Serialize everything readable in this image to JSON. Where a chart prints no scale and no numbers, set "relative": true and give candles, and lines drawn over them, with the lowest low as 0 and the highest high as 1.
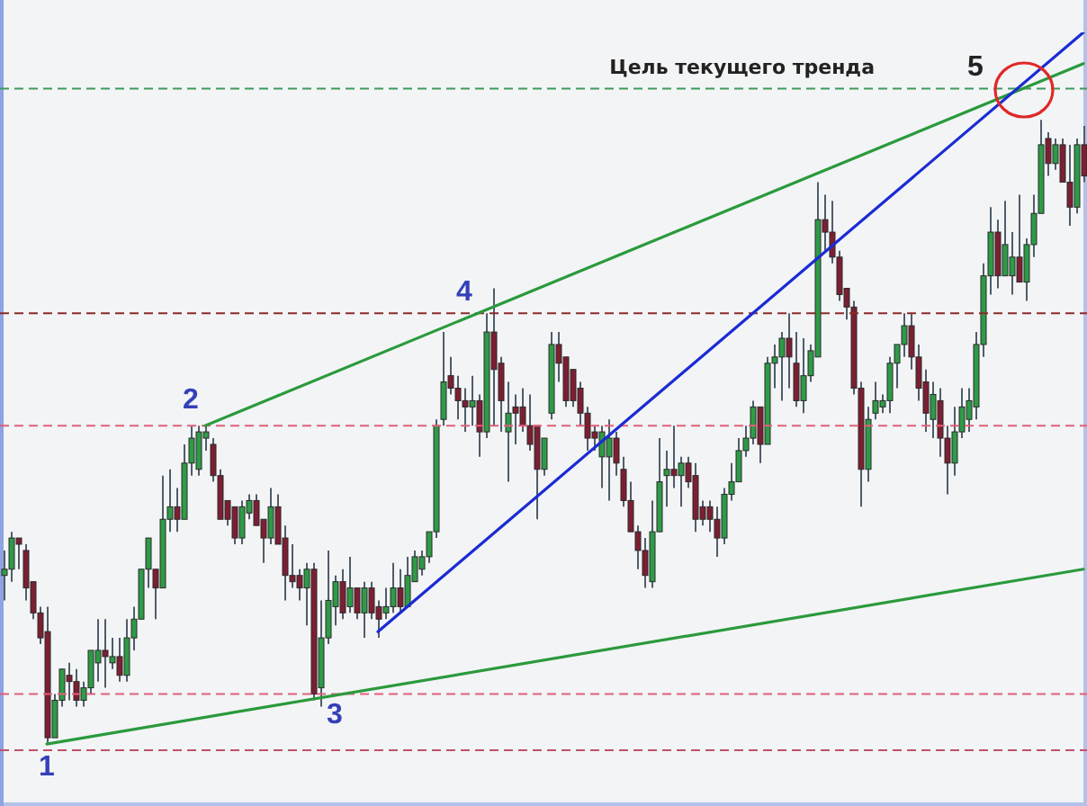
{
  "chart_data": {
    "type": "candlestick",
    "relative": true,
    "tick_labels": false,
    "categories": [
      null,
      null,
      null,
      null,
      null,
      null,
      null,
      null,
      null,
      null,
      null,
      null,
      null,
      null,
      null,
      null,
      null,
      null,
      null,
      null,
      null,
      null,
      null,
      null,
      null,
      null,
      null,
      null,
      null,
      null,
      null,
      null,
      null,
      null,
      null,
      null,
      null,
      null,
      null,
      null,
      null,
      null,
      null,
      null,
      null,
      null,
      null,
      null,
      null,
      null,
      null,
      null,
      null,
      null,
      null,
      null,
      null,
      null,
      null,
      null,
      null,
      null,
      null,
      null,
      null,
      null,
      null,
      null,
      null,
      null,
      null,
      null,
      null,
      null,
      null,
      null,
      null,
      null,
      null,
      null,
      null,
      null,
      null,
      null,
      null,
      null,
      null,
      null,
      null,
      null,
      null,
      null,
      null,
      null,
      null,
      null,
      null,
      null,
      null,
      null,
      null,
      null,
      null,
      null,
      null,
      null,
      null,
      null,
      null,
      null,
      null,
      null,
      null,
      null,
      null,
      null,
      null,
      null,
      null,
      null,
      null,
      null,
      null,
      null,
      null,
      null,
      null,
      null,
      null,
      null,
      null,
      null,
      null,
      null,
      null,
      null,
      null,
      null,
      null,
      null,
      null,
      null,
      null,
      null,
      null,
      null,
      null,
      null,
      null,
      null,
      null
    ],
    "ohlc": [
      [
        0.27,
        0.31,
        0.23,
        0.28
      ],
      [
        0.28,
        0.34,
        0.26,
        0.33
      ],
      [
        0.33,
        0.33,
        0.28,
        0.32
      ],
      [
        0.31,
        0.32,
        0.23,
        0.25
      ],
      [
        0.26,
        0.26,
        0.2,
        0.21
      ],
      [
        0.21,
        0.22,
        0.16,
        0.17
      ],
      [
        0.18,
        0.22,
        0,
        0.01
      ],
      [
        0.01,
        0.08,
        0.01,
        0.07
      ],
      [
        0.07,
        0.12,
        0.06,
        0.12
      ],
      [
        0.11,
        0.13,
        0.07,
        0.1
      ],
      [
        0.1,
        0.12,
        0.06,
        0.07
      ],
      [
        0.07,
        0.1,
        0.06,
        0.09
      ],
      [
        0.09,
        0.15,
        0.08,
        0.15
      ],
      [
        0.13,
        0.2,
        0.1,
        0.15
      ],
      [
        0.15,
        0.2,
        0.09,
        0.14
      ],
      [
        0.13,
        0.17,
        0.12,
        0.14
      ],
      [
        0.14,
        0.17,
        0.1,
        0.11
      ],
      [
        0.11,
        0.2,
        0.1,
        0.17
      ],
      [
        0.17,
        0.22,
        0.15,
        0.2
      ],
      [
        0.2,
        0.28,
        0.2,
        0.28
      ],
      [
        0.28,
        0.33,
        0.25,
        0.33
      ],
      [
        0.28,
        0.28,
        0.2,
        0.25
      ],
      [
        0.25,
        0.43,
        0.25,
        0.36
      ],
      [
        0.36,
        0.44,
        0.34,
        0.38
      ],
      [
        0.38,
        0.41,
        0.34,
        0.36
      ],
      [
        0.36,
        0.48,
        0.36,
        0.45
      ],
      [
        0.45,
        0.51,
        0.43,
        0.49
      ],
      [
        0.44,
        0.51,
        0.43,
        0.5
      ],
      [
        0.49,
        0.51,
        0.47,
        0.5
      ],
      [
        0.48,
        0.49,
        0.42,
        0.43
      ],
      [
        0.43,
        0.44,
        0.36,
        0.36
      ],
      [
        0.39,
        0.39,
        0.35,
        0.36
      ],
      [
        0.38,
        0.38,
        0.32,
        0.33
      ],
      [
        0.33,
        0.39,
        0.32,
        0.38
      ],
      [
        0.37,
        0.4,
        0.36,
        0.39
      ],
      [
        0.39,
        0.4,
        0.35,
        0.35
      ],
      [
        0.36,
        0.36,
        0.29,
        0.33
      ],
      [
        0.33,
        0.41,
        0.32,
        0.38
      ],
      [
        0.38,
        0.4,
        0.32,
        0.32
      ],
      [
        0.33,
        0.35,
        0.23,
        0.27
      ],
      [
        0.27,
        0.32,
        0.25,
        0.26
      ],
      [
        0.27,
        0.28,
        0.23,
        0.25
      ],
      [
        0.25,
        0.29,
        0.19,
        0.28
      ],
      [
        0.28,
        0.29,
        0.07,
        0.08
      ],
      [
        0.09,
        0.23,
        0.06,
        0.17
      ],
      [
        0.17,
        0.31,
        0.16,
        0.23
      ],
      [
        0.22,
        0.27,
        0.19,
        0.26
      ],
      [
        0.26,
        0.28,
        0.2,
        0.21
      ],
      [
        0.22,
        0.3,
        0.21,
        0.25
      ],
      [
        0.25,
        0.25,
        0.2,
        0.21
      ],
      [
        0.21,
        0.26,
        0.17,
        0.25
      ],
      [
        0.25,
        0.26,
        0.2,
        0.21
      ],
      [
        0.22,
        0.23,
        0.17,
        0.2
      ],
      [
        0.21,
        0.25,
        0.2,
        0.22
      ],
      [
        0.22,
        0.29,
        0.21,
        0.25
      ],
      [
        0.25,
        0.28,
        0.21,
        0.22
      ],
      [
        0.22,
        0.3,
        0.22,
        0.27
      ],
      [
        0.26,
        0.31,
        0.26,
        0.3
      ],
      [
        0.28,
        0.31,
        0.27,
        0.3
      ],
      [
        0.3,
        0.34,
        0.29,
        0.34
      ],
      [
        0.34,
        0.52,
        0.33,
        0.51
      ],
      [
        0.52,
        0.66,
        0.51,
        0.58
      ],
      [
        0.59,
        0.62,
        0.56,
        0.57
      ],
      [
        0.57,
        0.59,
        0.52,
        0.55
      ],
      [
        0.55,
        0.57,
        0.5,
        0.54
      ],
      [
        0.54,
        0.59,
        0.51,
        0.55
      ],
      [
        0.55,
        0.56,
        0.46,
        0.5
      ],
      [
        0.5,
        0.69,
        0.49,
        0.66
      ],
      [
        0.66,
        0.73,
        0.51,
        0.6
      ],
      [
        0.61,
        0.62,
        0.5,
        0.55
      ],
      [
        0.5,
        0.58,
        0.42,
        0.53
      ],
      [
        0.54,
        0.56,
        0.48,
        0.53
      ],
      [
        0.54,
        0.57,
        0.5,
        0.51
      ],
      [
        0.51,
        0.56,
        0.47,
        0.48
      ],
      [
        0.51,
        0.51,
        0.36,
        0.44
      ],
      [
        0.44,
        0.49,
        0.43,
        0.49
      ],
      [
        0.53,
        0.66,
        0.52,
        0.64
      ],
      [
        0.64,
        0.66,
        0.58,
        0.61
      ],
      [
        0.62,
        0.62,
        0.54,
        0.55
      ],
      [
        0.6,
        0.6,
        0.54,
        0.55
      ],
      [
        0.57,
        0.58,
        0.51,
        0.53
      ],
      [
        0.53,
        0.54,
        0.47,
        0.49
      ],
      [
        0.5,
        0.51,
        0.47,
        0.49
      ],
      [
        0.46,
        0.51,
        0.41,
        0.5
      ],
      [
        0.46,
        0.52,
        0.39,
        0.49
      ],
      [
        0.49,
        0.5,
        0.43,
        0.45
      ],
      [
        0.44,
        0.46,
        0.38,
        0.39
      ],
      [
        0.39,
        0.42,
        0.34,
        0.34
      ],
      [
        0.34,
        0.35,
        0.28,
        0.31
      ],
      [
        0.31,
        0.33,
        0.25,
        0.27
      ],
      [
        0.26,
        0.39,
        0.25,
        0.34
      ],
      [
        0.34,
        0.49,
        0.34,
        0.42
      ],
      [
        0.43,
        0.47,
        0.38,
        0.44
      ],
      [
        0.44,
        0.51,
        0.41,
        0.43
      ],
      [
        0.43,
        0.46,
        0.38,
        0.45
      ],
      [
        0.45,
        0.46,
        0.41,
        0.42
      ],
      [
        0.43,
        0.45,
        0.34,
        0.36
      ],
      [
        0.38,
        0.39,
        0.35,
        0.36
      ],
      [
        0.38,
        0.39,
        0.34,
        0.36
      ],
      [
        0.36,
        0.38,
        0.3,
        0.33
      ],
      [
        0.33,
        0.41,
        0.32,
        0.4
      ],
      [
        0.4,
        0.45,
        0.39,
        0.42
      ],
      [
        0.42,
        0.49,
        0.42,
        0.47
      ],
      [
        0.47,
        0.51,
        0.46,
        0.49
      ],
      [
        0.49,
        0.55,
        0.48,
        0.54
      ],
      [
        0.54,
        0.54,
        0.45,
        0.48
      ],
      [
        0.48,
        0.62,
        0.48,
        0.61
      ],
      [
        0.61,
        0.64,
        0.57,
        0.62
      ],
      [
        0.62,
        0.66,
        0.55,
        0.65
      ],
      [
        0.65,
        0.69,
        0.57,
        0.62
      ],
      [
        0.61,
        0.66,
        0.54,
        0.55
      ],
      [
        0.55,
        0.65,
        0.53,
        0.59
      ],
      [
        0.59,
        0.64,
        0.58,
        0.63
      ],
      [
        0.62,
        0.9,
        0.62,
        0.84
      ],
      [
        0.84,
        0.88,
        0.79,
        0.82
      ],
      [
        0.82,
        0.87,
        0.77,
        0.78
      ],
      [
        0.78,
        0.79,
        0.71,
        0.72
      ],
      [
        0.73,
        0.73,
        0.68,
        0.7
      ],
      [
        0.7,
        0.71,
        0.56,
        0.57
      ],
      [
        0.57,
        0.58,
        0.38,
        0.44
      ],
      [
        0.44,
        0.54,
        0.42,
        0.52
      ],
      [
        0.53,
        0.58,
        0.52,
        0.55
      ],
      [
        0.54,
        0.56,
        0.53,
        0.55
      ],
      [
        0.55,
        0.62,
        0.53,
        0.61
      ],
      [
        0.61,
        0.64,
        0.57,
        0.64
      ],
      [
        0.64,
        0.69,
        0.62,
        0.67
      ],
      [
        0.67,
        0.69,
        0.6,
        0.62
      ],
      [
        0.62,
        0.64,
        0.55,
        0.57
      ],
      [
        0.58,
        0.6,
        0.5,
        0.53
      ],
      [
        0.52,
        0.58,
        0.49,
        0.56
      ],
      [
        0.55,
        0.57,
        0.46,
        0.49
      ],
      [
        0.49,
        0.51,
        0.4,
        0.45
      ],
      [
        0.45,
        0.54,
        0.43,
        0.5
      ],
      [
        0.5,
        0.57,
        0.49,
        0.54
      ],
      [
        0.52,
        0.57,
        0.5,
        0.55
      ],
      [
        0.54,
        0.66,
        0.52,
        0.64
      ],
      [
        0.64,
        0.77,
        0.62,
        0.75
      ],
      [
        0.75,
        0.86,
        0.72,
        0.82
      ],
      [
        0.82,
        0.84,
        0.73,
        0.75
      ],
      [
        0.75,
        0.87,
        0.75,
        0.8
      ],
      [
        0.75,
        0.82,
        0.72,
        0.78
      ],
      [
        0.78,
        0.88,
        0.74,
        0.74
      ],
      [
        0.74,
        0.81,
        0.71,
        0.8
      ],
      [
        0.8,
        0.88,
        0.78,
        0.85
      ],
      [
        0.85,
        1,
        0.85,
        0.96
      ],
      [
        0.97,
        0.98,
        0.91,
        0.93
      ],
      [
        0.93,
        0.97,
        0.92,
        0.96
      ],
      [
        0.96,
        0.97,
        0.9,
        0.9
      ],
      [
        0.9,
        0.96,
        0.83,
        0.86
      ],
      [
        0.86,
        0.97,
        0.85,
        0.96
      ],
      [
        0.96,
        0.99,
        0.9,
        0.91
      ]
    ],
    "colors": [
      "#2e9b47",
      "#2e9b47",
      "#7d1e32",
      "#7d1e32",
      "#7d1e32",
      "#7d1e32",
      "#7d1e32",
      "#2e9b47",
      "#2e9b47",
      "#7d1e32",
      "#7d1e32",
      "#2e9b47",
      "#2e9b47",
      "#2e9b47",
      "#7d1e32",
      "#2e9b47",
      "#7d1e32",
      "#2e9b47",
      "#2e9b47",
      "#2e9b47",
      "#2e9b47",
      "#7d1e32",
      "#2e9b47",
      "#2e9b47",
      "#7d1e32",
      "#2e9b47",
      "#2e9b47",
      "#2e9b47",
      "#2e9b47",
      "#7d1e32",
      "#7d1e32",
      "#7d1e32",
      "#7d1e32",
      "#2e9b47",
      "#2e9b47",
      "#7d1e32",
      "#7d1e32",
      "#2e9b47",
      "#7d1e32",
      "#7d1e32",
      "#7d1e32",
      "#7d1e32",
      "#2e9b47",
      "#7d1e32",
      "#2e9b47",
      "#2e9b47",
      "#2e9b47",
      "#7d1e32",
      "#2e9b47",
      "#7d1e32",
      "#2e9b47",
      "#7d1e32",
      "#7d1e32",
      "#2e9b47",
      "#2e9b47",
      "#7d1e32",
      "#2e9b47",
      "#2e9b47",
      "#2e9b47",
      "#2e9b47",
      "#2e9b47",
      "#2e9b47",
      "#7d1e32",
      "#7d1e32",
      "#7d1e32",
      "#2e9b47",
      "#7d1e32",
      "#2e9b47",
      "#7d1e32",
      "#7d1e32",
      "#2e9b47",
      "#7d1e32",
      "#7d1e32",
      "#7d1e32",
      "#7d1e32",
      "#2e9b47",
      "#2e9b47",
      "#7d1e32",
      "#7d1e32",
      "#7d1e32",
      "#7d1e32",
      "#7d1e32",
      "#7d1e32",
      "#2e9b47",
      "#2e9b47",
      "#7d1e32",
      "#7d1e32",
      "#7d1e32",
      "#7d1e32",
      "#7d1e32",
      "#2e9b47",
      "#2e9b47",
      "#2e9b47",
      "#7d1e32",
      "#2e9b47",
      "#7d1e32",
      "#7d1e32",
      "#7d1e32",
      "#7d1e32",
      "#7d1e32",
      "#2e9b47",
      "#2e9b47",
      "#2e9b47",
      "#2e9b47",
      "#2e9b47",
      "#7d1e32",
      "#2e9b47",
      "#2e9b47",
      "#2e9b47",
      "#7d1e32",
      "#7d1e32",
      "#2e9b47",
      "#2e9b47",
      "#2e9b47",
      "#7d1e32",
      "#7d1e32",
      "#7d1e32",
      "#7d1e32",
      "#7d1e32",
      "#7d1e32",
      "#2e9b47",
      "#2e9b47",
      "#2e9b47",
      "#2e9b47",
      "#2e9b47",
      "#2e9b47",
      "#7d1e32",
      "#7d1e32",
      "#7d1e32",
      "#2e9b47",
      "#7d1e32",
      "#7d1e32",
      "#2e9b47",
      "#2e9b47",
      "#2e9b47",
      "#2e9b47",
      "#2e9b47",
      "#2e9b47",
      "#7d1e32",
      "#2e9b47",
      "#2e9b47",
      "#7d1e32",
      "#2e9b47",
      "#2e9b47",
      "#2e9b47",
      "#7d1e32",
      "#2e9b47",
      "#7d1e32",
      "#7d1e32",
      "#2e9b47",
      "#7d1e32"
    ],
    "series": [
      {
        "type": "line",
        "color": "#2a9a3c",
        "values": [
          null,
          null,
          null,
          null,
          null,
          null,
          0,
          null,
          null,
          null,
          null,
          null,
          null,
          null,
          null,
          null,
          null,
          null,
          null,
          null,
          null,
          null,
          null,
          null,
          null,
          null,
          null,
          null,
          null,
          null,
          null,
          null,
          null,
          null,
          null,
          null,
          null,
          null,
          null,
          null,
          null,
          null,
          null,
          null,
          null,
          null,
          null,
          null,
          null,
          null,
          null,
          null,
          null,
          null,
          null,
          null,
          null,
          null,
          null,
          null,
          null,
          null,
          null,
          null,
          null,
          null,
          null,
          null,
          null,
          null,
          null,
          null,
          null,
          null,
          null,
          null,
          null,
          null,
          null,
          null,
          null,
          null,
          null,
          null,
          null,
          null,
          null,
          null,
          null,
          null,
          null,
          null,
          null,
          null,
          null,
          null,
          null,
          null,
          null,
          null,
          null,
          null,
          null,
          null,
          null,
          null,
          null,
          null,
          null,
          null,
          null,
          null,
          null,
          null,
          null,
          null,
          null,
          null,
          null,
          null,
          null,
          null,
          null,
          null,
          null,
          null,
          null,
          null,
          null,
          null,
          null,
          null,
          null,
          null,
          null,
          null,
          null,
          null,
          null,
          null,
          null,
          null,
          null,
          null,
          null,
          null,
          null,
          null,
          null,
          null,
          0.28
        ]
      },
      {
        "type": "line",
        "color": "#2a9a3c",
        "values": [
          null,
          null,
          null,
          null,
          null,
          null,
          null,
          null,
          null,
          null,
          null,
          null,
          null,
          null,
          null,
          null,
          null,
          null,
          null,
          null,
          null,
          null,
          null,
          null,
          null,
          null,
          null,
          null,
          0.51,
          null,
          null,
          null,
          null,
          null,
          null,
          null,
          null,
          null,
          null,
          null,
          null,
          null,
          null,
          null,
          null,
          null,
          null,
          null,
          null,
          null,
          null,
          null,
          null,
          null,
          null,
          null,
          null,
          null,
          null,
          null,
          null,
          null,
          null,
          null,
          null,
          null,
          null,
          null,
          null,
          null,
          null,
          null,
          null,
          null,
          null,
          null,
          null,
          null,
          null,
          null,
          null,
          null,
          null,
          null,
          null,
          null,
          null,
          null,
          null,
          null,
          null,
          null,
          null,
          null,
          null,
          null,
          null,
          null,
          null,
          null,
          null,
          null,
          null,
          null,
          null,
          null,
          null,
          null,
          null,
          null,
          null,
          null,
          null,
          null,
          null,
          null,
          null,
          null,
          null,
          null,
          null,
          null,
          null,
          null,
          null,
          null,
          null,
          null,
          null,
          null,
          null,
          null,
          null,
          null,
          null,
          null,
          null,
          null,
          null,
          null,
          null,
          null,
          null,
          null,
          null,
          null,
          null,
          null,
          null,
          null,
          1.09
        ]
      },
      {
        "type": "line",
        "color": "#1b2bd3",
        "values": [
          null,
          null,
          null,
          null,
          null,
          null,
          null,
          null,
          null,
          null,
          null,
          null,
          null,
          null,
          null,
          null,
          null,
          null,
          null,
          null,
          null,
          null,
          null,
          null,
          null,
          null,
          null,
          null,
          null,
          null,
          null,
          null,
          null,
          null,
          null,
          null,
          null,
          null,
          null,
          null,
          null,
          null,
          null,
          null,
          null,
          null,
          null,
          null,
          null,
          null,
          null,
          null,
          0.18,
          null,
          null,
          null,
          null,
          null,
          null,
          null,
          null,
          null,
          null,
          null,
          null,
          null,
          null,
          null,
          null,
          null,
          null,
          null,
          null,
          null,
          null,
          null,
          null,
          null,
          null,
          null,
          null,
          null,
          null,
          null,
          null,
          null,
          null,
          null,
          null,
          null,
          null,
          null,
          null,
          null,
          null,
          null,
          null,
          null,
          null,
          null,
          null,
          null,
          null,
          null,
          null,
          null,
          null,
          null,
          null,
          null,
          null,
          null,
          null,
          null,
          null,
          null,
          null,
          null,
          null,
          null,
          null,
          null,
          null,
          null,
          null,
          null,
          null,
          null,
          null,
          null,
          null,
          null,
          null,
          null,
          null,
          null,
          null,
          null,
          null,
          null,
          null,
          null,
          null,
          null,
          null,
          null,
          null,
          null,
          null,
          null,
          1.14
        ]
      }
    ],
    "ref_lines": [
      {
        "axis": "y",
        "value": 1.05,
        "label": "Цель текущего тренда",
        "color": "#3f9a5c",
        "line_style": "dashed"
      },
      {
        "axis": "y",
        "value": 0.69,
        "color": "#8b2a2a",
        "line_style": "dashed"
      },
      {
        "axis": "y",
        "value": 0.51,
        "color": "#e0607a",
        "line_style": "dashed"
      },
      {
        "axis": "y",
        "value": 0.08,
        "color": "#e0607a",
        "line_style": "dashed"
      },
      {
        "axis": "y",
        "value": -0.01,
        "color": "#c0506a",
        "line_style": "dashed"
      }
    ],
    "annotations": [
      "1",
      "2",
      "3",
      "4",
      "5"
    ]
  }
}
